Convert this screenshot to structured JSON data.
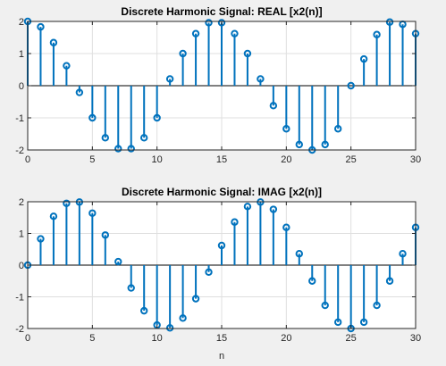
{
  "colors": {
    "figure_bg": "#f0f0f0",
    "axes_bg": "#ffffff",
    "stem": "#0072bd",
    "grid": "#dfdfdf",
    "axis": "#262626"
  },
  "chart_data": [
    {
      "type": "stem",
      "title": "Discrete Harmonic Signal: REAL [x2(n)]",
      "xlabel": "",
      "ylabel": "",
      "xlim": [
        0,
        30
      ],
      "ylim": [
        -2,
        2
      ],
      "xticks": [
        0,
        5,
        10,
        15,
        20,
        25,
        30
      ],
      "yticks": [
        -2,
        -1,
        0,
        1,
        2
      ],
      "x_tick_labels": [
        "0",
        "5",
        "10",
        "15",
        "20",
        "25",
        "30"
      ],
      "y_tick_labels": [
        "-2",
        "-1",
        "0",
        "1",
        "2"
      ],
      "grid": true,
      "x": [
        0,
        1,
        2,
        3,
        4,
        5,
        6,
        7,
        8,
        9,
        10,
        11,
        12,
        13,
        14,
        15,
        16,
        17,
        18,
        19,
        20,
        21,
        22,
        23,
        24,
        25,
        26,
        27,
        28,
        29,
        30
      ],
      "values": [
        2.0,
        1.83,
        1.34,
        0.62,
        -0.21,
        -1.0,
        -1.62,
        -1.96,
        -1.96,
        -1.62,
        -1.0,
        0.21,
        1.0,
        1.62,
        1.96,
        1.96,
        1.62,
        1.0,
        0.21,
        -0.62,
        -1.34,
        -1.83,
        -2.0,
        -1.83,
        -1.34,
        0.0,
        0.83,
        1.59,
        1.98,
        1.91,
        1.62
      ]
    },
    {
      "type": "stem",
      "title": "Discrete Harmonic Signal: IMAG [x2(n)]",
      "xlabel": "n",
      "ylabel": "",
      "xlim": [
        0,
        30
      ],
      "ylim": [
        -2,
        2
      ],
      "xticks": [
        0,
        5,
        10,
        15,
        20,
        25,
        30
      ],
      "yticks": [
        -2,
        -1,
        0,
        1,
        2
      ],
      "x_tick_labels": [
        "0",
        "5",
        "10",
        "15",
        "20",
        "25",
        "30"
      ],
      "y_tick_labels": [
        "-2",
        "-1",
        "0",
        "1",
        "2"
      ],
      "grid": true,
      "x": [
        0,
        1,
        2,
        3,
        4,
        5,
        6,
        7,
        8,
        9,
        10,
        11,
        12,
        13,
        14,
        15,
        16,
        17,
        18,
        19,
        20,
        21,
        22,
        23,
        24,
        25,
        26,
        27,
        28,
        29,
        30
      ],
      "values": [
        0.0,
        0.83,
        1.54,
        1.95,
        1.99,
        1.64,
        0.95,
        0.11,
        -0.72,
        -1.44,
        -1.89,
        -1.98,
        -1.67,
        -1.06,
        -0.22,
        0.62,
        1.36,
        1.85,
        1.99,
        1.76,
        1.19,
        0.36,
        -0.5,
        -1.27,
        -1.8,
        -2.0,
        -1.8,
        -1.27,
        -0.5,
        0.36,
        1.19
      ]
    }
  ]
}
